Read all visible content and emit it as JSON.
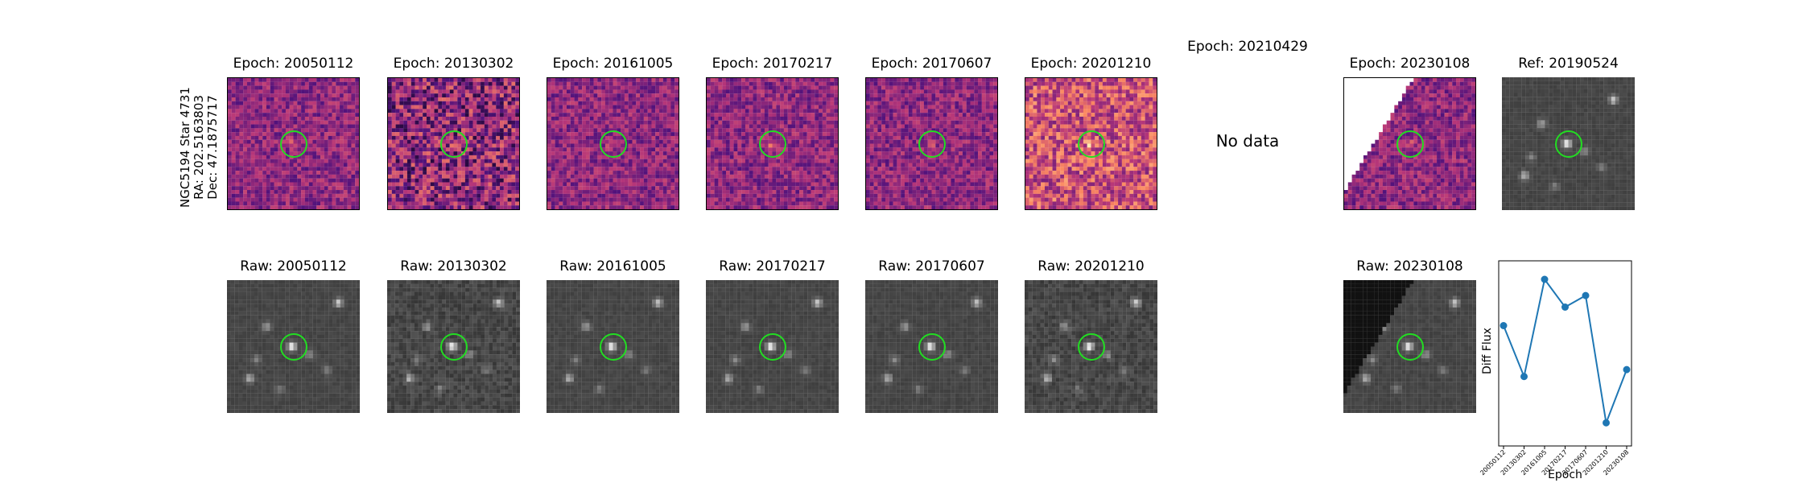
{
  "star_label": {
    "line1": "NGC5194 Star 4731",
    "line2": "RA: 202.5163803",
    "line3": "Dec: 47.1875717"
  },
  "diff_panels": [
    {
      "title": "Epoch: 20050112"
    },
    {
      "title": "Epoch: 20130302"
    },
    {
      "title": "Epoch: 20161005"
    },
    {
      "title": "Epoch: 20170217"
    },
    {
      "title": "Epoch: 20170607"
    },
    {
      "title": "Epoch: 20201210"
    },
    {
      "title": "Epoch: 20230108"
    },
    {
      "title": "Ref: 20190524"
    }
  ],
  "missing_panel": {
    "title": "Epoch: 20210429",
    "message": "No data"
  },
  "raw_panels": [
    {
      "title": "Raw: 20050112"
    },
    {
      "title": "Raw: 20130302"
    },
    {
      "title": "Raw: 20161005"
    },
    {
      "title": "Raw: 20170217"
    },
    {
      "title": "Raw: 20170607"
    },
    {
      "title": "Raw: 20201210"
    },
    {
      "title": "Raw: 20230108"
    }
  ],
  "colors": {
    "marker": "#22dd22",
    "series": "#1f77b4"
  },
  "chart_data": {
    "type": "line",
    "x": [
      "20050112",
      "20130302",
      "20161005",
      "20170217",
      "20170607",
      "20201210",
      "20230108"
    ],
    "series": [
      {
        "values": [
          0.52,
          0.3,
          0.72,
          0.6,
          0.65,
          0.1,
          0.33
        ]
      }
    ],
    "xlabel": "Epoch",
    "ylabel": "Diff Flux",
    "ylim": [
      0.0,
      0.8
    ],
    "grid": false,
    "y_ticks_shown": false
  }
}
